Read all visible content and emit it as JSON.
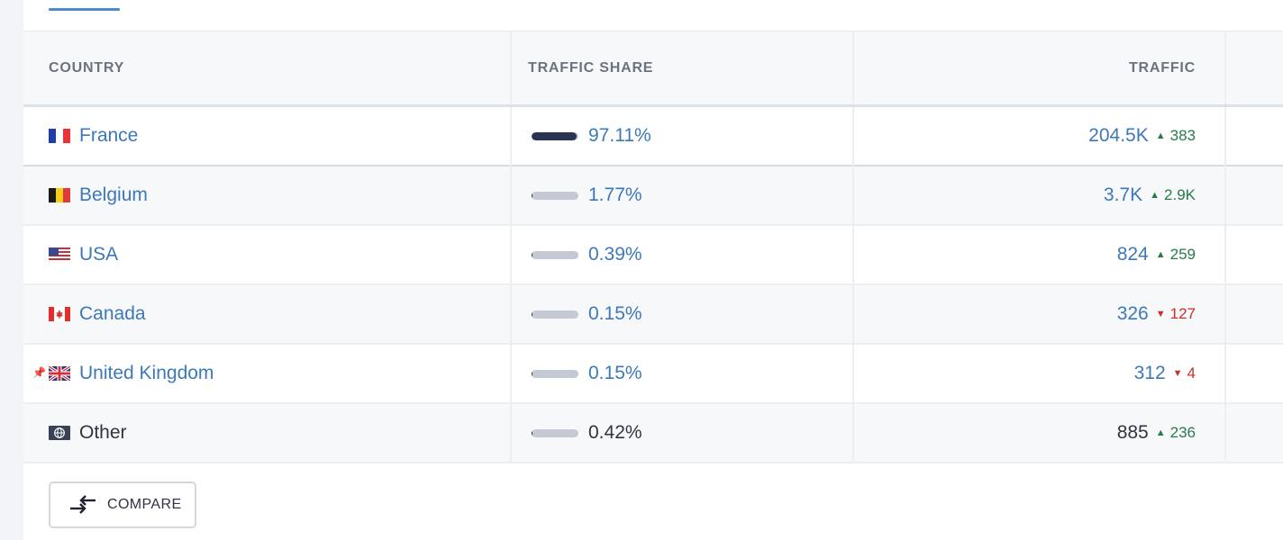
{
  "table": {
    "headers": {
      "country": "COUNTRY",
      "traffic_share": "TRAFFIC SHARE",
      "traffic": "TRAFFIC"
    },
    "rows": [
      {
        "country": "France",
        "flag": "flag-france-icon",
        "share": "97.11%",
        "share_fraction": 0.9711,
        "traffic": "204.5K",
        "delta": "383",
        "direction": "up"
      },
      {
        "country": "Belgium",
        "flag": "flag-belgium-icon",
        "share": "1.77%",
        "share_fraction": 0.0177,
        "traffic": "3.7K",
        "delta": "2.9K",
        "direction": "up"
      },
      {
        "country": "USA",
        "flag": "flag-usa-icon",
        "share": "0.39%",
        "share_fraction": 0.0039,
        "traffic": "824",
        "delta": "259",
        "direction": "up"
      },
      {
        "country": "Canada",
        "flag": "flag-canada-icon",
        "share": "0.15%",
        "share_fraction": 0.0015,
        "traffic": "326",
        "delta": "127",
        "direction": "down"
      },
      {
        "country": "United Kingdom",
        "flag": "flag-uk-icon",
        "share": "0.15%",
        "share_fraction": 0.0015,
        "traffic": "312",
        "delta": "4",
        "direction": "down",
        "pinned": true
      },
      {
        "country": "Other",
        "flag": "globe-icon",
        "share": "0.42%",
        "share_fraction": 0.0042,
        "traffic": "885",
        "delta": "236",
        "direction": "up"
      }
    ]
  },
  "compare_button": {
    "label": "COMPARE",
    "icon": "compare-arrows-icon"
  },
  "colors": {
    "link": "#3d78b8",
    "bar_fill": "#2b3352",
    "bar_track": "#c5c9d3",
    "up": "#287a4a",
    "down": "#c9302c"
  }
}
